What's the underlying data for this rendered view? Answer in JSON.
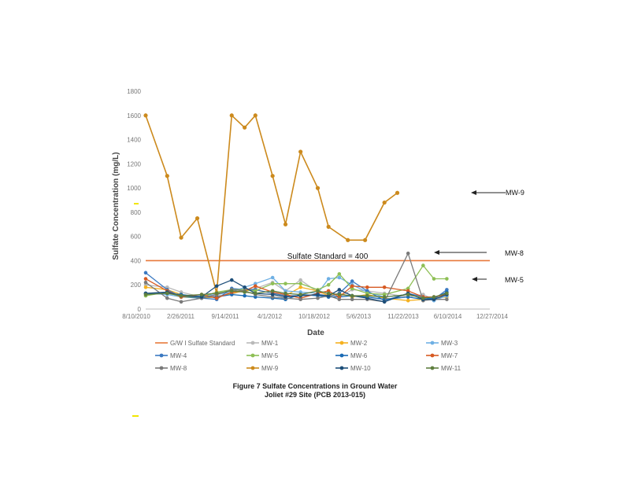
{
  "chart_data": {
    "type": "line",
    "title": "Sulfate Concentrations in Ground Water",
    "xlabel": "Date",
    "ylabel": "Sulfate Concentration (mg/L)",
    "ylim": [
      0,
      1800
    ],
    "yticks": [
      0,
      200,
      400,
      600,
      800,
      1000,
      1200,
      1400,
      1600,
      1800
    ],
    "xlim": [
      0,
      1600
    ],
    "xtick_labels": [
      "8/10/2010",
      "2/26/2011",
      "9/14/2011",
      "4/1/2012",
      "10/18/2012",
      "5/6/2013",
      "11/22/2013",
      "6/10/2014",
      "12/27/2014"
    ],
    "x_dates": [
      0,
      100,
      165,
      260,
      330,
      400,
      460,
      510,
      590,
      650,
      720,
      800,
      850,
      900,
      960,
      1030,
      1110,
      1220,
      1290,
      1340,
      1400
    ],
    "standard": {
      "name": "G/W I Sulfate Standard",
      "value": 400,
      "label": "Sulfate Standard = 400",
      "color": "#e8793a"
    },
    "series": [
      {
        "name": "MW-1",
        "color": "#b9b9b9",
        "values": [
          200,
          180,
          140,
          100,
          110,
          120,
          160,
          170,
          220,
          150,
          240,
          140,
          120,
          100,
          160,
          150,
          130,
          100,
          120,
          80,
          140
        ]
      },
      {
        "name": "MW-2",
        "color": "#f5b120",
        "values": [
          180,
          160,
          120,
          90,
          100,
          130,
          150,
          160,
          130,
          110,
          180,
          150,
          110,
          130,
          100,
          120,
          90,
          70,
          80,
          90,
          100
        ]
      },
      {
        "name": "MW-3",
        "color": "#6fb0e4",
        "values": [
          130,
          120,
          100,
          110,
          120,
          140,
          180,
          210,
          260,
          150,
          140,
          130,
          250,
          260,
          200,
          140,
          100,
          120,
          90,
          70,
          110
        ]
      },
      {
        "name": "MW-4",
        "color": "#3b79c2",
        "values": [
          300,
          160,
          100,
          90,
          80,
          170,
          160,
          160,
          130,
          110,
          110,
          120,
          100,
          130,
          230,
          150,
          70,
          130,
          100,
          80,
          160
        ]
      },
      {
        "name": "MW-5",
        "color": "#8ebf55",
        "values": [
          110,
          140,
          100,
          100,
          140,
          160,
          160,
          150,
          210,
          210,
          210,
          160,
          200,
          290,
          170,
          130,
          120,
          170,
          360,
          250,
          250
        ]
      },
      {
        "name": "MW-6",
        "color": "#1a6bb5",
        "values": [
          130,
          130,
          120,
          100,
          100,
          120,
          110,
          100,
          90,
          80,
          120,
          110,
          100,
          100,
          110,
          100,
          80,
          100,
          80,
          90,
          140
        ]
      },
      {
        "name": "MW-7",
        "color": "#d75a22",
        "values": [
          250,
          150,
          100,
          120,
          90,
          140,
          150,
          190,
          140,
          120,
          90,
          130,
          150,
          100,
          190,
          180,
          180,
          150,
          100,
          100,
          120
        ]
      },
      {
        "name": "MW-8",
        "color": "#7a7a7a",
        "values": [
          220,
          90,
          60,
          90,
          120,
          160,
          150,
          120,
          100,
          90,
          80,
          90,
          110,
          80,
          80,
          80,
          60,
          460,
          70,
          80,
          80
        ]
      },
      {
        "name": "MW-9",
        "color": "#cc8a1d",
        "values": [
          1600,
          1100,
          590,
          750,
          130,
          1600,
          1500,
          1600,
          1100,
          700,
          1300,
          1000,
          680,
          570,
          570,
          880,
          960
        ]
      },
      {
        "name": "MW-10",
        "color": "#1d4e79",
        "values": [
          130,
          140,
          110,
          100,
          190,
          240,
          180,
          130,
          120,
          100,
          110,
          120,
          110,
          160,
          110,
          90,
          60,
          130,
          80,
          80,
          120
        ]
      },
      {
        "name": "MW-11",
        "color": "#5f7f3f",
        "values": [
          120,
          130,
          110,
          120,
          130,
          150,
          140,
          130,
          150,
          130,
          120,
          150,
          130,
          120,
          110,
          110,
          100,
          120,
          90,
          100,
          130
        ]
      }
    ],
    "mw9_x_dates": [
      0,
      100,
      165,
      240,
      330,
      400,
      460,
      510,
      590,
      650,
      720,
      800,
      850,
      940,
      1020,
      1110,
      1170
    ],
    "annotations": [
      "MW-9",
      "MW-8",
      "MW-5"
    ]
  },
  "caption": {
    "line1": "Figure 7   Sulfate Concentrations in Ground Water",
    "line2": "Joliet #29 Site (PCB 2013-015)"
  }
}
